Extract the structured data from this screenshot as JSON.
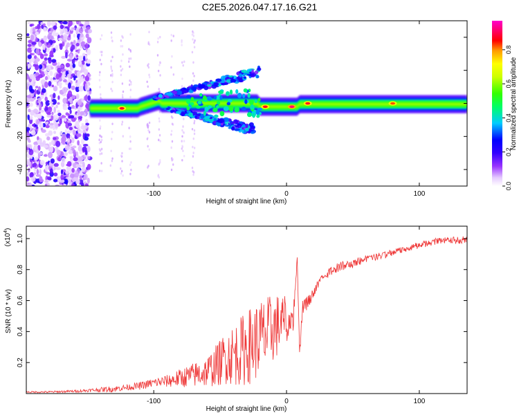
{
  "title": "C2E5.2026.047.17.16.G21",
  "chart_data": [
    {
      "type": "heatmap",
      "title": "C2E5.2026.047.17.16.G21",
      "xlabel": "Height of straight line (km)",
      "ylabel": "Frequency (Hz)",
      "xlim": [
        -196,
        136
      ],
      "ylim": [
        -50,
        50
      ],
      "xticks": [
        -100,
        0,
        100
      ],
      "yticks": [
        -40,
        -20,
        0,
        20,
        40
      ],
      "colorbar": {
        "label": "Normalized spectral amplitude",
        "range": [
          0,
          0.97
        ],
        "ticks": [
          0.0,
          0.2,
          0.4,
          0.6,
          0.8
        ],
        "colormap": [
          "#ffffff",
          "#e6ccff",
          "#9933ff",
          "#3300ff",
          "#0000ff",
          "#00ccff",
          "#00ff66",
          "#33ff00",
          "#ccff00",
          "#ffff00",
          "#ff9900",
          "#ff0000",
          "#ff0066",
          "#ff00cc"
        ]
      },
      "features": [
        {
          "name": "noise-region",
          "x_range": [
            -196,
            -148
          ],
          "f_range": [
            -50,
            50
          ],
          "amplitude": 0.25
        },
        {
          "name": "main-band",
          "x_range": [
            -148,
            136
          ],
          "center_hz": -2,
          "amplitude": 0.55
        },
        {
          "name": "upper-branch",
          "x_range": [
            -100,
            -20
          ],
          "f_range": [
            3,
            22
          ],
          "amplitude": 0.3
        },
        {
          "name": "lower-branch",
          "x_range": [
            -90,
            -25
          ],
          "f_range": [
            -16,
            -3
          ],
          "amplitude": 0.3
        },
        {
          "name": "peak",
          "x": -124,
          "f": -3,
          "amplitude": 0.9
        },
        {
          "name": "peak",
          "x": -16,
          "f": -2,
          "amplitude": 0.9
        },
        {
          "name": "peak",
          "x": 4,
          "f": -2,
          "amplitude": 0.95
        },
        {
          "name": "peak",
          "x": 16,
          "f": 0,
          "amplitude": 0.9
        },
        {
          "name": "peak",
          "x": 80,
          "f": 0,
          "amplitude": 0.85
        }
      ]
    },
    {
      "type": "line",
      "xlabel": "Height of straight line (km)",
      "ylabel": "SNR (10 * v/v)",
      "y_multiplier": "(x10",
      "y_multiplier_exp": "4",
      "y_multiplier_close": ")",
      "xlim": [
        -196,
        136
      ],
      "ylim": [
        0,
        1.08
      ],
      "xticks": [
        -100,
        0,
        100
      ],
      "yticks": [
        0.2,
        0.4,
        0.6,
        0.8,
        1.0
      ],
      "series": [
        {
          "name": "SNR",
          "color": "#ee3333",
          "x": [
            -196,
            -180,
            -160,
            -150,
            -140,
            -130,
            -120,
            -110,
            -100,
            -90,
            -80,
            -70,
            -60,
            -50,
            -45,
            -40,
            -35,
            -30,
            -25,
            -20,
            -15,
            -10,
            -5,
            0,
            5,
            8,
            10,
            12,
            15,
            20,
            25,
            30,
            35,
            40,
            45,
            50,
            60,
            70,
            80,
            90,
            100,
            110,
            120,
            130,
            136
          ],
          "values": [
            0.01,
            0.01,
            0.015,
            0.02,
            0.025,
            0.03,
            0.04,
            0.05,
            0.07,
            0.08,
            0.1,
            0.12,
            0.14,
            0.2,
            0.24,
            0.25,
            0.27,
            0.3,
            0.32,
            0.36,
            0.38,
            0.42,
            0.45,
            0.5,
            0.55,
            0.9,
            0.25,
            0.6,
            0.62,
            0.68,
            0.75,
            0.8,
            0.83,
            0.85,
            0.86,
            0.87,
            0.89,
            0.91,
            0.93,
            0.96,
            0.98,
            1.0,
            1.01,
            1.01,
            1.02
          ],
          "noise": [
            0.005,
            0.006,
            0.008,
            0.01,
            0.015,
            0.02,
            0.02,
            0.025,
            0.03,
            0.04,
            0.06,
            0.08,
            0.1,
            0.15,
            0.18,
            0.2,
            0.22,
            0.25,
            0.25,
            0.25,
            0.25,
            0.22,
            0.2,
            0.12,
            0.1,
            0.05,
            0.05,
            0.06,
            0.06,
            0.05,
            0.04,
            0.04,
            0.04,
            0.04,
            0.04,
            0.04,
            0.03,
            0.03,
            0.03,
            0.03,
            0.03,
            0.03,
            0.03,
            0.03,
            0.03
          ]
        }
      ]
    }
  ]
}
